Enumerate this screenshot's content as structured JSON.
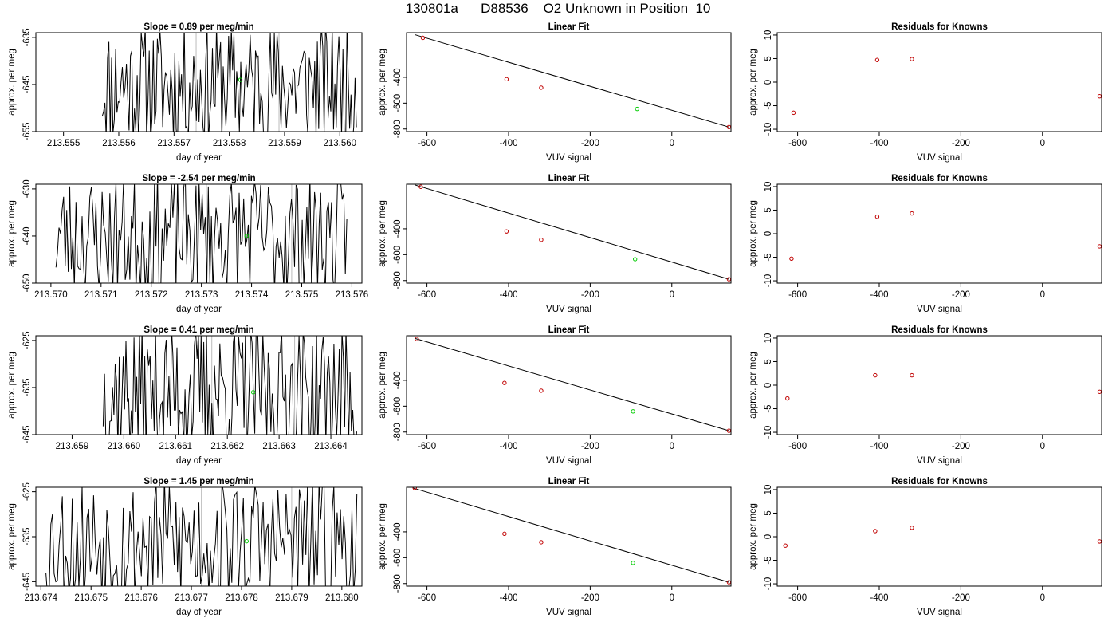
{
  "suptitle": "130801a      D88536    O2 Unknown in Position  10",
  "colors": {
    "line": "#000000",
    "fit_point": "#c00000",
    "unknown_point": "#00cc00",
    "vline": "#bbbbbb"
  },
  "chart_data": [
    {
      "type": "line",
      "title": "Slope =  0.89  per meg/min",
      "xlabel": "day of year",
      "ylabel": "approx. per meg",
      "xlim": [
        213.5545,
        213.5604
      ],
      "ylim": [
        -655,
        -634
      ],
      "xticks": [
        "213.555",
        "213.556",
        "213.557",
        "213.558",
        "213.559",
        "213.560"
      ],
      "yticks": [
        "-635",
        "-645",
        "-655"
      ],
      "series_start": 213.5557,
      "series_end": 213.5603,
      "vlines": [
        213.5574,
        213.5589
      ],
      "unknown_point": [
        213.5582,
        -644
      ],
      "y_center": -645,
      "y_amp": 9,
      "seed": 11
    },
    {
      "type": "scatter",
      "title": "Linear Fit",
      "xlabel": "VUV signal",
      "ylabel": "approx. per meg",
      "xlim": [
        -650,
        145
      ],
      "ylim": [
        -820,
        -55
      ],
      "xticks": [
        "-600",
        "-400",
        "-200",
        "0"
      ],
      "yticks": [
        "-400",
        "-600",
        "-800"
      ],
      "points": [
        [
          -610,
          -95
        ],
        [
          -405,
          -415
        ],
        [
          -320,
          -480
        ],
        [
          140,
          -785
        ]
      ],
      "unknown_point": [
        -85,
        -645
      ],
      "fit_line": [
        [
          -630,
          -70
        ],
        [
          140,
          -785
        ]
      ]
    },
    {
      "type": "scatter",
      "title": "Residuals for Knowns",
      "xlabel": "VUV signal",
      "ylabel": "approx. per meg",
      "xlim": [
        -650,
        145
      ],
      "ylim": [
        -10.5,
        10.5
      ],
      "xticks": [
        "-600",
        "-400",
        "-200",
        "0"
      ],
      "yticks": [
        "-10",
        "-5",
        "0",
        "5",
        "10"
      ],
      "points": [
        [
          -610,
          -6.5
        ],
        [
          -405,
          4.7
        ],
        [
          -320,
          4.9
        ],
        [
          140,
          -3.0
        ]
      ]
    },
    {
      "type": "line",
      "title": "Slope =  -2.54  per meg/min",
      "xlabel": "day of year",
      "ylabel": "approx. per meg",
      "xlim": [
        213.5697,
        213.5762
      ],
      "ylim": [
        -650,
        -629
      ],
      "xticks": [
        "213.570",
        "213.571",
        "213.572",
        "213.573",
        "213.574",
        "213.575",
        "213.576"
      ],
      "yticks": [
        "-630",
        "-640",
        "-650"
      ],
      "series_start": 213.5701,
      "series_end": 213.5759,
      "vlines": [
        213.5731,
        213.5748
      ],
      "unknown_point": [
        213.5739,
        -640
      ],
      "y_center": -640,
      "y_amp": 9,
      "seed": 23
    },
    {
      "type": "scatter",
      "title": "Linear Fit",
      "xlabel": "VUV signal",
      "ylabel": "approx. per meg",
      "xlim": [
        -650,
        145
      ],
      "ylim": [
        -820,
        -55
      ],
      "xticks": [
        "-600",
        "-400",
        "-200",
        "0"
      ],
      "yticks": [
        "-400",
        "-600",
        "-800"
      ],
      "points": [
        [
          -615,
          -75
        ],
        [
          -405,
          -420
        ],
        [
          -320,
          -485
        ],
        [
          140,
          -790
        ]
      ],
      "unknown_point": [
        -90,
        -635
      ],
      "fit_line": [
        [
          -630,
          -60
        ],
        [
          140,
          -790
        ]
      ]
    },
    {
      "type": "scatter",
      "title": "Residuals for Knowns",
      "xlabel": "VUV signal",
      "ylabel": "approx. per meg",
      "xlim": [
        -650,
        145
      ],
      "ylim": [
        -10.5,
        10.5
      ],
      "xticks": [
        "-600",
        "-400",
        "-200",
        "0"
      ],
      "yticks": [
        "-10",
        "-5",
        "0",
        "5",
        "10"
      ],
      "points": [
        [
          -615,
          -5.3
        ],
        [
          -405,
          3.6
        ],
        [
          -320,
          4.3
        ],
        [
          140,
          -2.7
        ]
      ]
    },
    {
      "type": "line",
      "title": "Slope =  0.41  per meg/min",
      "xlabel": "day of year",
      "ylabel": "approx. per meg",
      "xlim": [
        213.6583,
        213.6646
      ],
      "ylim": [
        -645,
        -624
      ],
      "xticks": [
        "213.659",
        "213.660",
        "213.661",
        "213.662",
        "213.663",
        "213.664"
      ],
      "yticks": [
        "-625",
        "-635",
        "-645"
      ],
      "series_start": 213.6596,
      "series_end": 213.6645,
      "vlines": [
        213.6617,
        213.6633
      ],
      "unknown_point": [
        213.6625,
        -636
      ],
      "y_center": -636,
      "y_amp": 10,
      "seed": 37
    },
    {
      "type": "scatter",
      "title": "Linear Fit",
      "xlabel": "VUV signal",
      "ylabel": "approx. per meg",
      "xlim": [
        -650,
        145
      ],
      "ylim": [
        -820,
        -55
      ],
      "xticks": [
        "-600",
        "-400",
        "-200",
        "0"
      ],
      "yticks": [
        "-400",
        "-600",
        "-800"
      ],
      "points": [
        [
          -625,
          -80
        ],
        [
          -410,
          -420
        ],
        [
          -320,
          -480
        ],
        [
          140,
          -790
        ]
      ],
      "unknown_point": [
        -95,
        -640
      ],
      "fit_line": [
        [
          -630,
          -75
        ],
        [
          140,
          -790
        ]
      ]
    },
    {
      "type": "scatter",
      "title": "Residuals for Knowns",
      "xlabel": "VUV signal",
      "ylabel": "approx. per meg",
      "xlim": [
        -650,
        145
      ],
      "ylim": [
        -10.5,
        10.5
      ],
      "xticks": [
        "-600",
        "-400",
        "-200",
        "0"
      ],
      "yticks": [
        "-10",
        "-5",
        "0",
        "5",
        "10"
      ],
      "points": [
        [
          -625,
          -2.8
        ],
        [
          -410,
          2.1
        ],
        [
          -320,
          2.1
        ],
        [
          140,
          -1.4
        ]
      ]
    },
    {
      "type": "line",
      "title": "Slope =  1.45  per meg/min",
      "xlabel": "day of year",
      "ylabel": "approx. per meg",
      "xlim": [
        213.6739,
        213.6804
      ],
      "ylim": [
        -646,
        -624
      ],
      "xticks": [
        "213.674",
        "213.675",
        "213.676",
        "213.677",
        "213.678",
        "213.679",
        "213.680"
      ],
      "yticks": [
        "-625",
        "-635",
        "-645"
      ],
      "series_start": 213.6741,
      "series_end": 213.6803,
      "vlines": [
        213.6772,
        213.679
      ],
      "unknown_point": [
        213.6781,
        -636
      ],
      "y_center": -636,
      "y_amp": 10,
      "seed": 53
    },
    {
      "type": "scatter",
      "title": "Linear Fit",
      "xlabel": "VUV signal",
      "ylabel": "approx. per meg",
      "xlim": [
        -650,
        145
      ],
      "ylim": [
        -820,
        -55
      ],
      "xticks": [
        "-600",
        "-400",
        "-200",
        "0"
      ],
      "yticks": [
        "-400",
        "-600",
        "-800"
      ],
      "points": [
        [
          -630,
          -60
        ],
        [
          -410,
          -415
        ],
        [
          -320,
          -480
        ],
        [
          140,
          -790
        ]
      ],
      "unknown_point": [
        -95,
        -640
      ],
      "fit_line": [
        [
          -635,
          -60
        ],
        [
          140,
          -790
        ]
      ]
    },
    {
      "type": "scatter",
      "title": "Residuals for Knowns",
      "xlabel": "VUV signal",
      "ylabel": "approx. per meg",
      "xlim": [
        -650,
        145
      ],
      "ylim": [
        -10.5,
        10.5
      ],
      "xticks": [
        "-600",
        "-400",
        "-200",
        "0"
      ],
      "yticks": [
        "-10",
        "-5",
        "0",
        "5",
        "10"
      ],
      "points": [
        [
          -630,
          -1.9
        ],
        [
          -410,
          1.2
        ],
        [
          -320,
          1.9
        ],
        [
          140,
          -1.0
        ]
      ]
    }
  ]
}
